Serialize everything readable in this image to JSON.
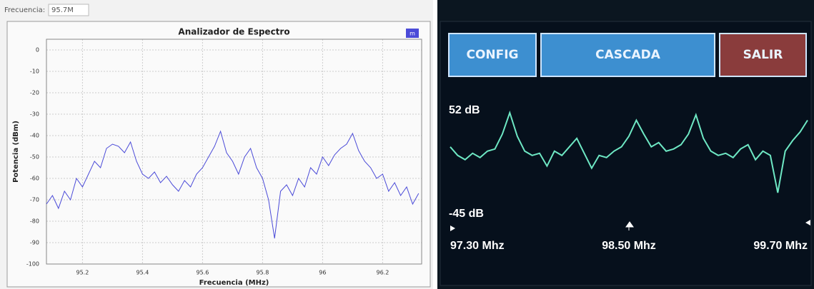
{
  "header": {
    "label": "Frecuencia:",
    "value": "95.7M"
  },
  "buttons": [
    "CONFIG",
    "CASCADA",
    "SALIR"
  ],
  "chart_data": [
    {
      "type": "line",
      "title": "Analizador de Espectro",
      "x_label": "Frecuencia (MHz)",
      "y_label": "Potencia (dBm)",
      "x": [
        95.08,
        95.1,
        95.12,
        95.14,
        95.16,
        95.18,
        95.2,
        95.22,
        95.24,
        95.26,
        95.28,
        95.3,
        95.32,
        95.34,
        95.36,
        95.38,
        95.4,
        95.42,
        95.44,
        95.46,
        95.48,
        95.5,
        95.52,
        95.54,
        95.56,
        95.58,
        95.6,
        95.62,
        95.64,
        95.66,
        95.68,
        95.7,
        95.72,
        95.74,
        95.76,
        95.78,
        95.8,
        95.82,
        95.84,
        95.86,
        95.88,
        95.9,
        95.92,
        95.94,
        95.96,
        95.98,
        96.0,
        96.02,
        96.04,
        96.06,
        96.08,
        96.1,
        96.12,
        96.14,
        96.16,
        96.18,
        96.2,
        96.22,
        96.24,
        96.26,
        96.28,
        96.3,
        96.32
      ],
      "series": [
        {
          "name": "m",
          "color": "#4b4bd8",
          "values": [
            -72,
            -68,
            -74,
            -66,
            -70,
            -60,
            -64,
            -58,
            -52,
            -55,
            -46,
            -44,
            -45,
            -48,
            -43,
            -52,
            -58,
            -60,
            -57,
            -62,
            -59,
            -63,
            -66,
            -61,
            -64,
            -58,
            -55,
            -50,
            -45,
            -38,
            -48,
            -52,
            -58,
            -50,
            -46,
            -55,
            -60,
            -70,
            -88,
            -66,
            -63,
            -68,
            -60,
            -64,
            -55,
            -58,
            -50,
            -54,
            -49,
            -46,
            -44,
            -39,
            -47,
            -52,
            -55,
            -60,
            -58,
            -66,
            -62,
            -68,
            -64,
            -72,
            -67
          ]
        }
      ],
      "xlim": [
        95.08,
        96.33
      ],
      "xticks": [
        95.2,
        95.4,
        95.6,
        95.8,
        96,
        96.2
      ],
      "ylim": [
        -100,
        5
      ],
      "yticks": [
        0,
        -10,
        -20,
        -30,
        -40,
        -50,
        -60,
        -70,
        -80,
        -90,
        -100
      ],
      "grid": true,
      "legend": "top-right"
    },
    {
      "type": "line",
      "x": [
        97.3,
        97.35,
        97.4,
        97.45,
        97.5,
        97.55,
        97.6,
        97.65,
        97.7,
        97.75,
        97.8,
        97.85,
        97.9,
        97.95,
        98.0,
        98.05,
        98.1,
        98.15,
        98.2,
        98.25,
        98.3,
        98.35,
        98.4,
        98.45,
        98.5,
        98.55,
        98.6,
        98.65,
        98.7,
        98.75,
        98.8,
        98.85,
        98.9,
        98.95,
        99.0,
        99.05,
        99.1,
        99.15,
        99.2,
        99.25,
        99.3,
        99.35,
        99.4,
        99.45,
        99.5,
        99.55,
        99.6,
        99.65,
        99.7
      ],
      "series": [
        {
          "color": "#6ee8c4",
          "values": [
            18,
            10,
            6,
            12,
            8,
            14,
            16,
            30,
            50,
            28,
            14,
            10,
            12,
            0,
            14,
            10,
            18,
            26,
            12,
            -2,
            10,
            8,
            14,
            18,
            28,
            43,
            30,
            18,
            22,
            14,
            16,
            20,
            30,
            48,
            26,
            14,
            10,
            12,
            8,
            16,
            20,
            6,
            14,
            10,
            -25,
            14,
            24,
            32,
            43
          ]
        }
      ],
      "xlim": [
        97.3,
        99.7
      ],
      "xticks": [
        {
          "value": 97.3,
          "label": "97.30 Mhz"
        },
        {
          "value": 98.5,
          "label": "98.50 Mhz"
        },
        {
          "value": 99.7,
          "label": "99.70 Mhz"
        }
      ],
      "ylim": [
        -45,
        52
      ],
      "yticks": [
        {
          "value": 52,
          "label": "52 dB"
        },
        {
          "value": -45,
          "label": "-45 dB"
        }
      ],
      "grid": false
    }
  ]
}
